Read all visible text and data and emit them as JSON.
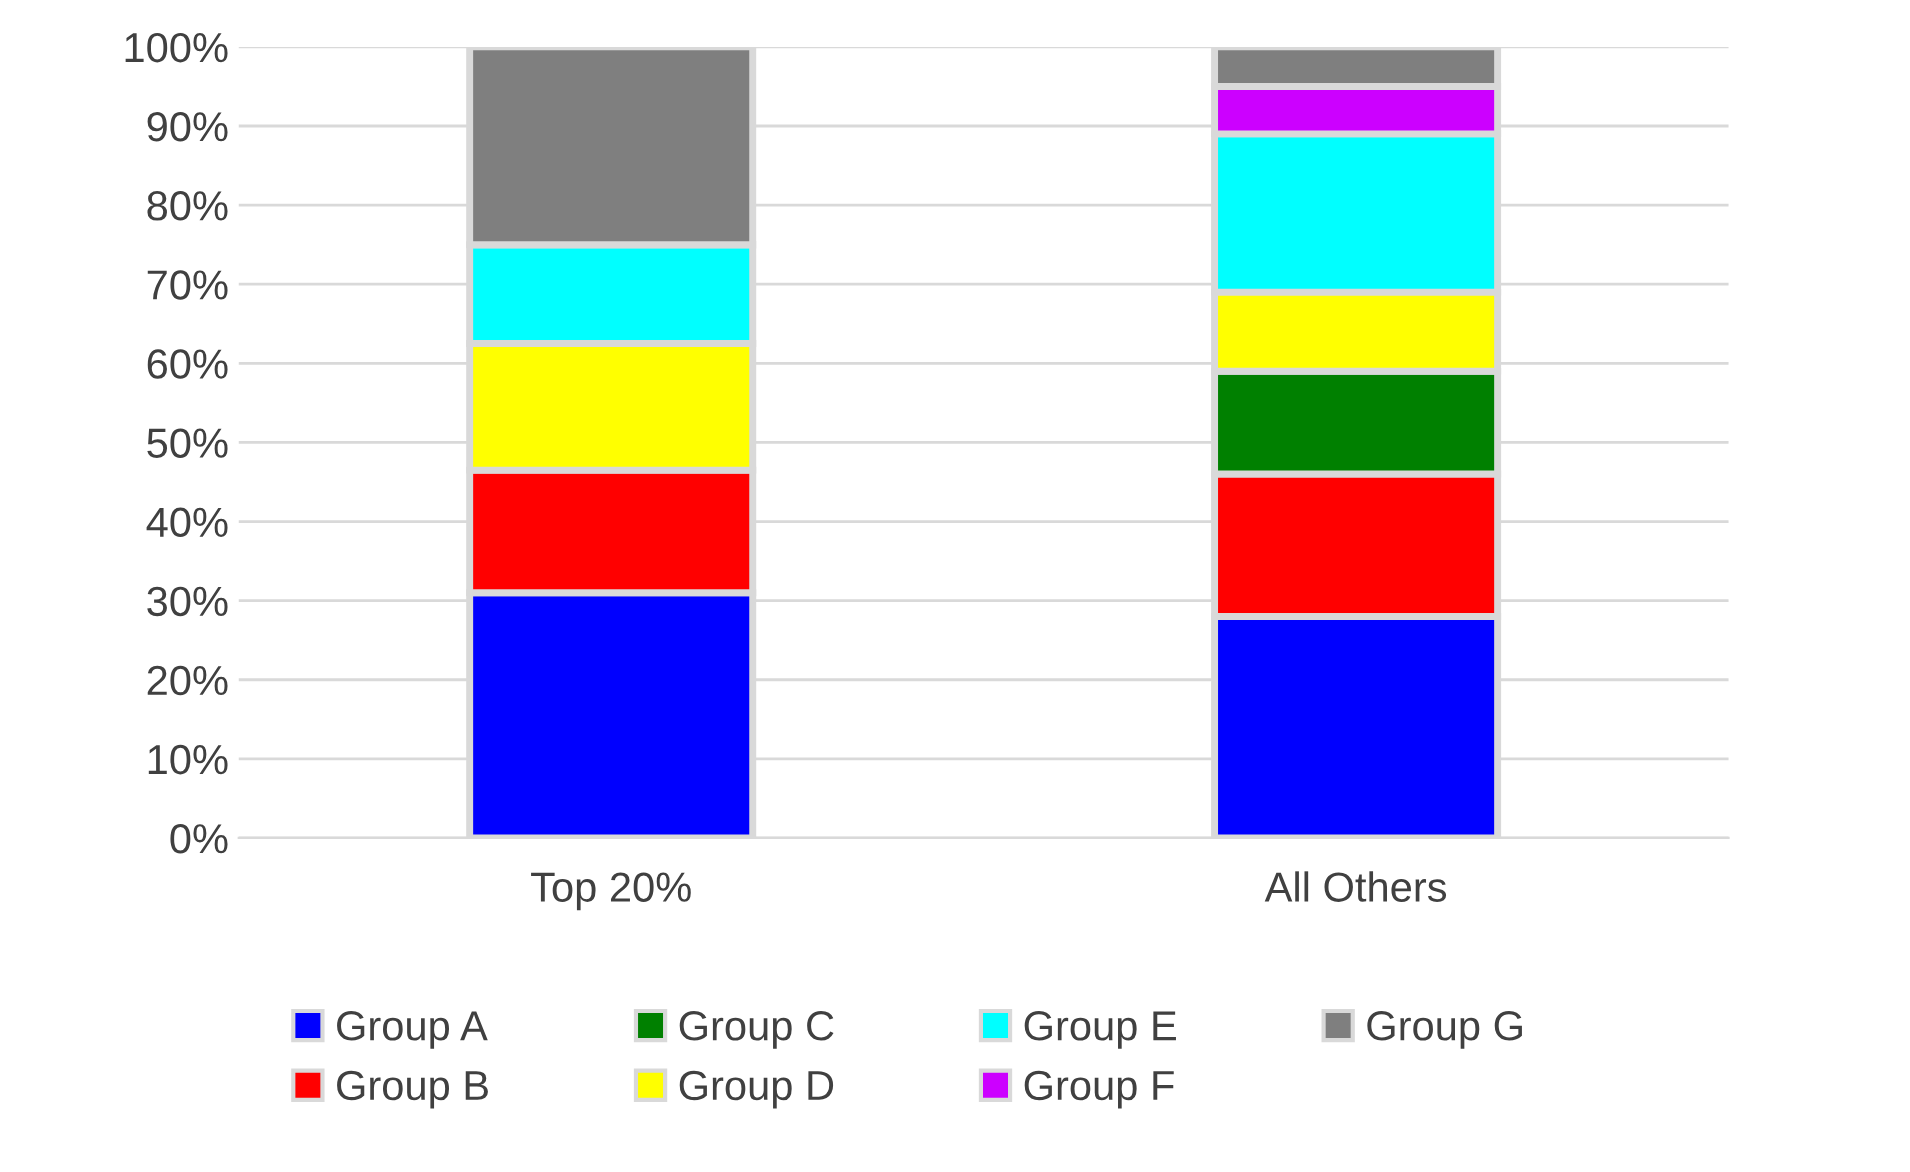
{
  "chart_data": {
    "type": "bar",
    "stacked": true,
    "categories": [
      "Top 20%",
      "All Others"
    ],
    "series": [
      {
        "name": "Group A",
        "color": "#0000ff",
        "values": [
          31,
          28
        ]
      },
      {
        "name": "Group B",
        "color": "#ff0000",
        "values": [
          15.5,
          18
        ]
      },
      {
        "name": "Group C",
        "color": "#008000",
        "values": [
          0,
          13
        ]
      },
      {
        "name": "Group D",
        "color": "#ffff00",
        "values": [
          16,
          10
        ]
      },
      {
        "name": "Group E",
        "color": "#00ffff",
        "values": [
          12.5,
          20
        ]
      },
      {
        "name": "Group F",
        "color": "#cc00ff",
        "values": [
          0,
          6
        ]
      },
      {
        "name": "Group G",
        "color": "#7f7f7f",
        "values": [
          25,
          5
        ]
      }
    ],
    "ylim": [
      0,
      100
    ],
    "yticks": [
      {
        "value": 0,
        "label": "0%"
      },
      {
        "value": 10,
        "label": "10%"
      },
      {
        "value": 20,
        "label": "20%"
      },
      {
        "value": 30,
        "label": "30%"
      },
      {
        "value": 40,
        "label": "40%"
      },
      {
        "value": 50,
        "label": "50%"
      },
      {
        "value": 60,
        "label": "60%"
      },
      {
        "value": 70,
        "label": "70%"
      },
      {
        "value": 80,
        "label": "80%"
      },
      {
        "value": 90,
        "label": "90%"
      },
      {
        "value": 100,
        "label": "100%"
      }
    ],
    "grid": "y",
    "legend": "bottom"
  }
}
